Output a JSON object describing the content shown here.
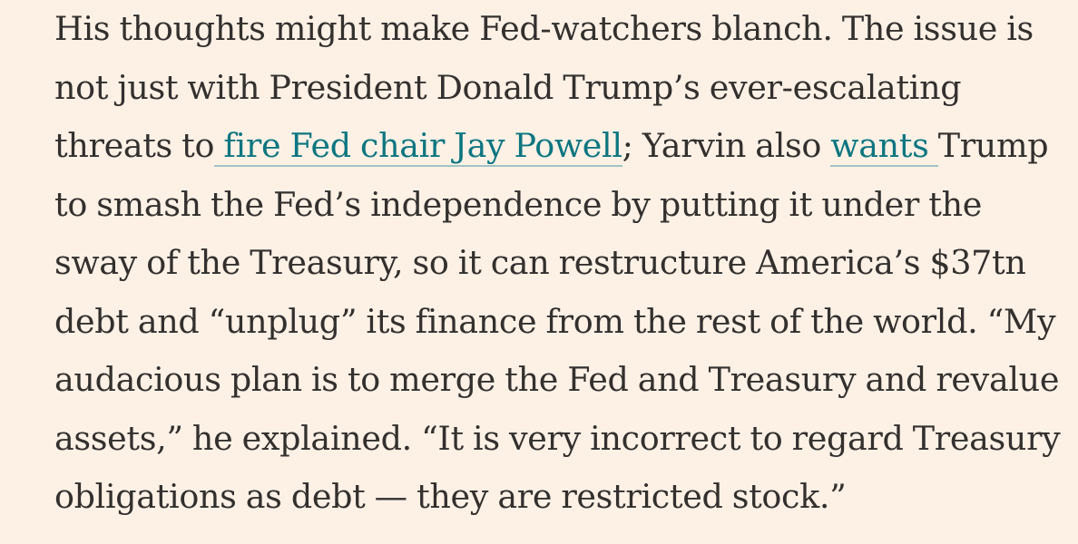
{
  "paragraph": {
    "line1": "His thoughts might make Fed-watchers blanch. The issue is",
    "line2": "not just with President Donald Trump’s ever-escalating",
    "line3_before": "threats to",
    "link_fire_powell": " fire Fed chair Jay Powell",
    "line3_middle": "; Yarvin also ",
    "link_wants": "wants ",
    "line3_after": "Trump",
    "line4": "to smash the Fed’s independence by putting it under the",
    "line5": "sway of the Treasury, so it can restructure America’s $37tn",
    "line6": "debt and “unplug” its finance from the rest of the world. “My",
    "line7": "audacious plan is to merge the Fed and Treasury and revalue",
    "line8": "assets,” he explained. “It is very incorrect to regard Treasury",
    "line9": "obligations as debt — they are restricted stock.”"
  },
  "colors": {
    "background": "#fdf1e6",
    "text": "#33302e",
    "link": "#0d7680"
  }
}
